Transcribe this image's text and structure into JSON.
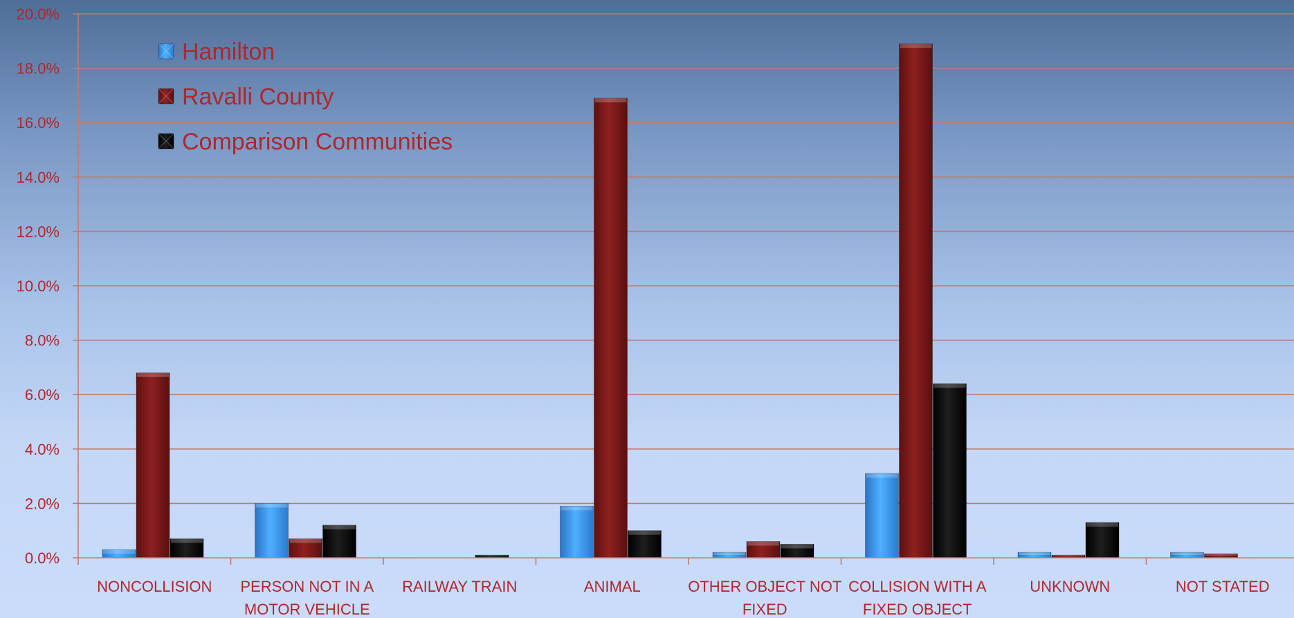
{
  "colors": {
    "text": "#b0272b",
    "grid": "#c07a72",
    "axis": "#c07a72",
    "hamilton": "#3a9ef5",
    "ravalli": "#7d1a1a",
    "comparison": "#0a0a0a"
  },
  "chart_data": {
    "type": "bar",
    "categories": [
      [
        "NONCOLLISION"
      ],
      [
        "PERSON NOT IN A",
        "MOTOR VEHICLE"
      ],
      [
        "RAILWAY TRAIN"
      ],
      [
        "ANIMAL"
      ],
      [
        "OTHER OBJECT NOT",
        "FIXED"
      ],
      [
        "COLLISION WITH A",
        "FIXED OBJECT"
      ],
      [
        "UNKNOWN"
      ],
      [
        "NOT STATED"
      ]
    ],
    "series": [
      {
        "name": "Hamilton",
        "color": "#3a9ef5",
        "values": [
          0.3,
          2.0,
          0.0,
          1.9,
          0.2,
          3.1,
          0.2,
          0.2
        ]
      },
      {
        "name": "Ravalli County",
        "color": "#7d1a1a",
        "values": [
          6.8,
          0.7,
          0.0,
          16.9,
          0.6,
          18.9,
          0.1,
          0.15
        ]
      },
      {
        "name": "Comparison Communities",
        "color": "#0a0a0a",
        "values": [
          0.7,
          1.2,
          0.1,
          1.0,
          0.5,
          6.4,
          1.3,
          0.0
        ]
      }
    ],
    "ylim": [
      0,
      20
    ],
    "yticks": [
      "0.0%",
      "2.0%",
      "4.0%",
      "6.0%",
      "8.0%",
      "10.0%",
      "12.0%",
      "14.0%",
      "16.0%",
      "18.0%",
      "20.0%"
    ],
    "grid": true,
    "legend_position": "top-left",
    "title": "",
    "xlabel": "",
    "ylabel": ""
  }
}
